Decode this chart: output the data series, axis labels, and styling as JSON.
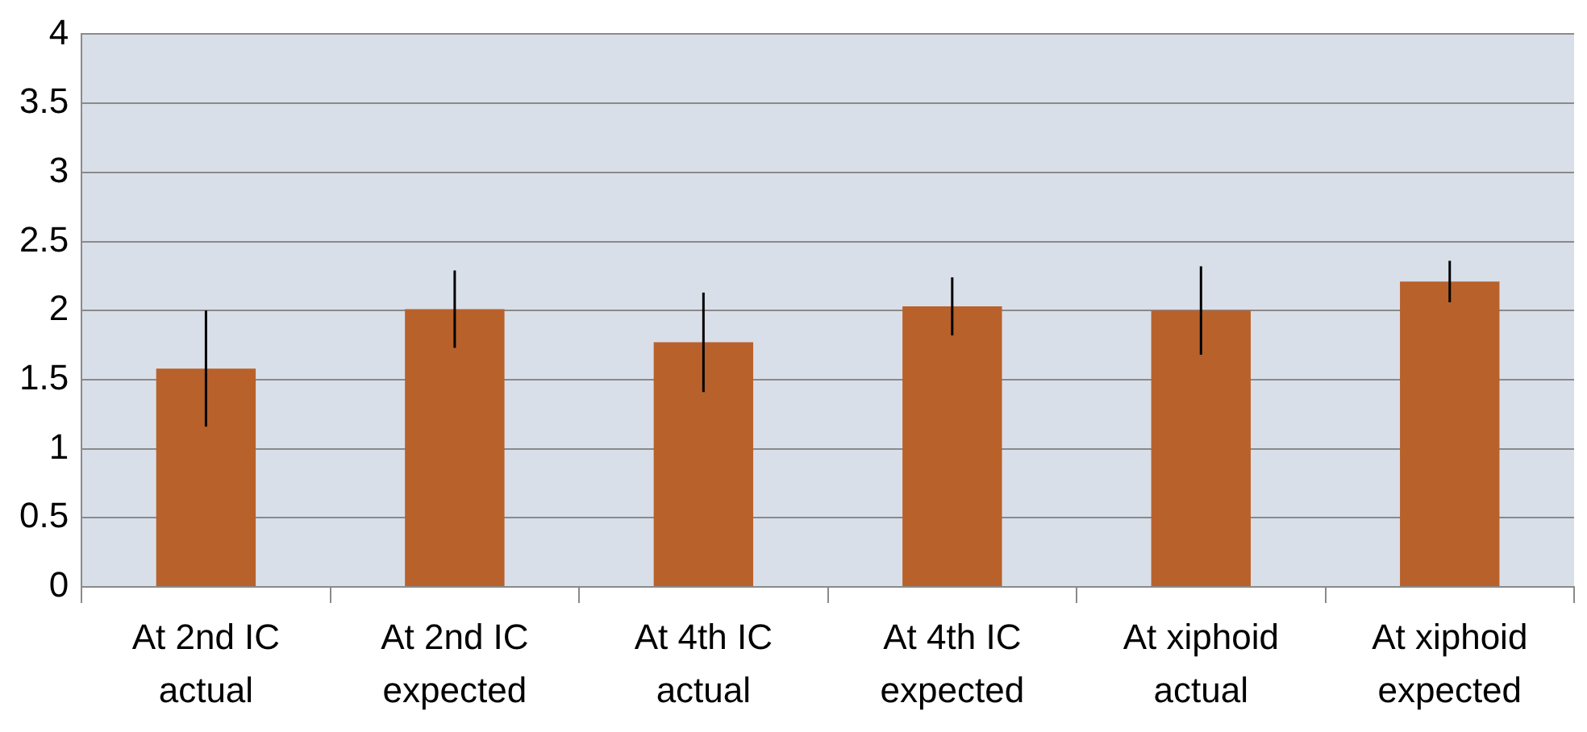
{
  "chart_data": {
    "type": "bar",
    "categories": [
      "At 2nd IC actual",
      "At 2nd IC expected",
      "At 4th IC actual",
      "At 4th IC expected",
      "At xiphoid actual",
      "At xiphoid expected"
    ],
    "values": [
      1.58,
      2.01,
      1.77,
      2.03,
      2.0,
      2.21
    ],
    "errors": [
      0.42,
      0.28,
      0.36,
      0.21,
      0.32,
      0.15
    ],
    "color": "#b9612a",
    "ylim": [
      0,
      4
    ],
    "yticks": [
      0,
      0.5,
      1,
      1.5,
      2,
      2.5,
      3,
      3.5,
      4
    ],
    "grid": "y",
    "legend": false
  }
}
